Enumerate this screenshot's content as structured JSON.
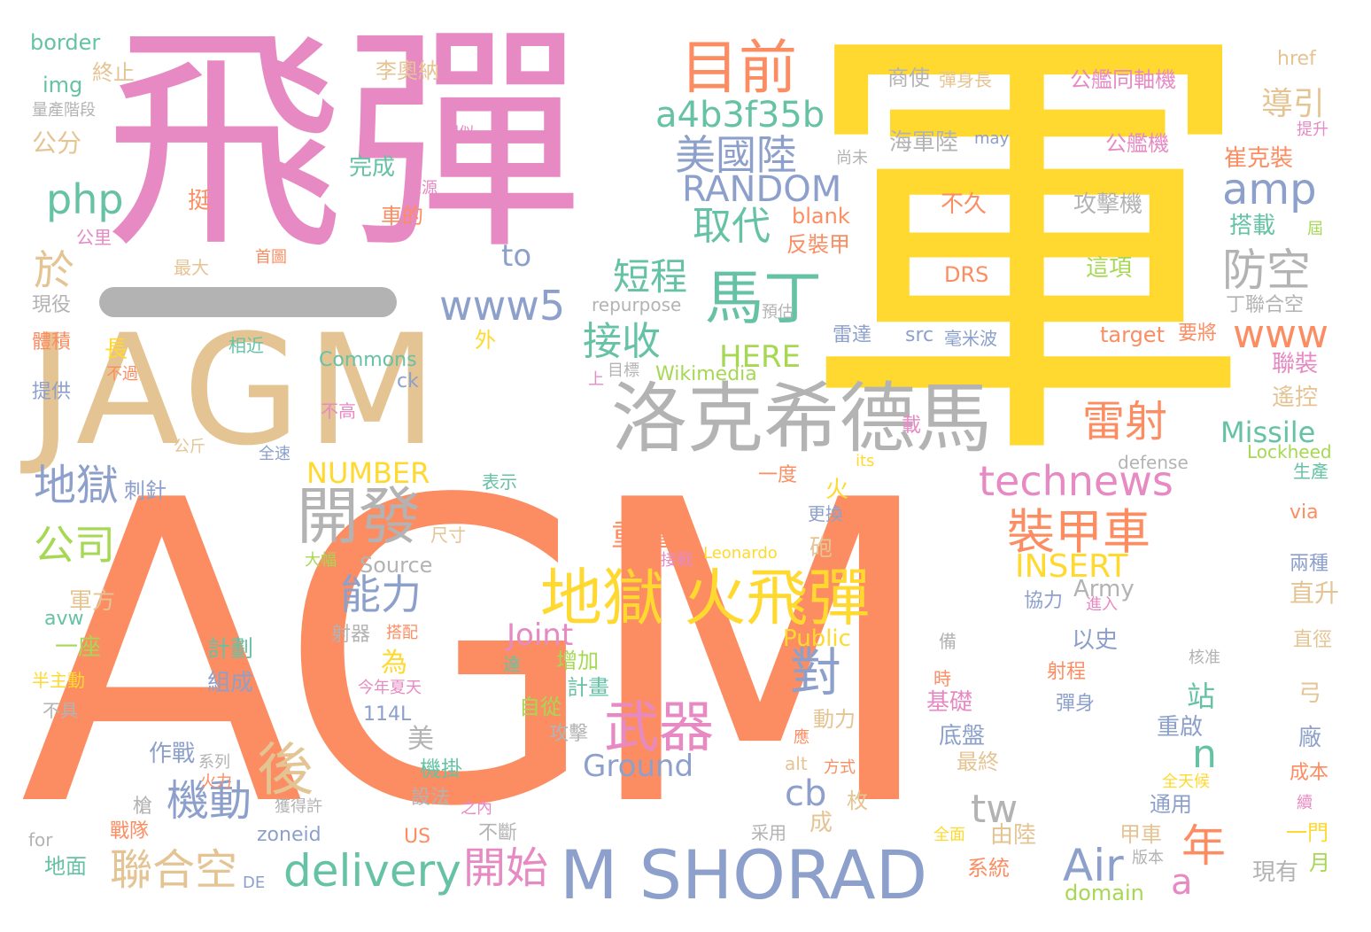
{
  "palette": {
    "orange": "#fc8d62",
    "pink": "#e78ac3",
    "yellow": "#ffd92f",
    "tan": "#e5c494",
    "gray": "#b3b3b3",
    "blue": "#8da0cb",
    "green": "#66c2a5",
    "lime": "#a6d854"
  },
  "words": [
    {
      "text": "AGM",
      "color": "orange"
    },
    {
      "text": "軍",
      "color": "yellow"
    },
    {
      "text": "飛彈",
      "color": "pink"
    },
    {
      "text": "JAGM",
      "color": "tan"
    },
    {
      "text": "M SHORAD",
      "color": "blue"
    },
    {
      "text": "洛克希德馬",
      "color": "gray"
    },
    {
      "text": "地獄 火飛彈",
      "color": "yellow"
    },
    {
      "text": "開發",
      "color": "gray"
    },
    {
      "text": "目前",
      "color": "orange"
    },
    {
      "text": "馬丁",
      "color": "green"
    },
    {
      "text": "武器",
      "color": "pink"
    },
    {
      "text": "裝甲車",
      "color": "orange"
    },
    {
      "text": "technews",
      "color": "pink"
    },
    {
      "text": "delivery",
      "color": "green"
    },
    {
      "text": "Air",
      "color": "blue"
    },
    {
      "text": "amp",
      "color": "blue"
    },
    {
      "text": "防空",
      "color": "gray"
    },
    {
      "text": "美國陸",
      "color": "blue"
    },
    {
      "text": "雷射",
      "color": "orange"
    },
    {
      "text": "接收",
      "color": "green"
    },
    {
      "text": "取代",
      "color": "green"
    },
    {
      "text": "短程",
      "color": "green"
    },
    {
      "text": "php",
      "color": "green"
    },
    {
      "text": "a4b3f35b",
      "color": "green"
    },
    {
      "text": "RANDOM",
      "color": "blue"
    },
    {
      "text": "www5",
      "color": "blue"
    },
    {
      "text": "www",
      "color": "orange"
    },
    {
      "text": "能力",
      "color": "blue"
    },
    {
      "text": "機動",
      "color": "blue"
    },
    {
      "text": "聯合空",
      "color": "tan"
    },
    {
      "text": "開始",
      "color": "pink"
    },
    {
      "text": "地獄",
      "color": "blue"
    },
    {
      "text": "公司",
      "color": "lime"
    },
    {
      "text": "後",
      "color": "tan"
    },
    {
      "text": "對",
      "color": "blue"
    },
    {
      "text": "年",
      "color": "orange"
    },
    {
      "text": "Missile",
      "color": "green"
    },
    {
      "text": "INSERT",
      "color": "yellow"
    },
    {
      "text": "NUMBER",
      "color": "yellow"
    },
    {
      "text": "Ground",
      "color": "blue"
    },
    {
      "text": "Joint",
      "color": "pink"
    },
    {
      "text": "HERE",
      "color": "lime"
    },
    {
      "text": "tw",
      "color": "gray"
    },
    {
      "text": "cb",
      "color": "blue"
    },
    {
      "text": "n",
      "color": "green"
    },
    {
      "text": "a",
      "color": "pink"
    },
    {
      "text": "於",
      "color": "tan"
    },
    {
      "text": "to",
      "color": "blue"
    },
    {
      "text": "重量",
      "color": "orange"
    },
    {
      "text": "導引",
      "color": "tan"
    },
    {
      "text": "Wikimedia",
      "color": "lime"
    },
    {
      "text": "Commons",
      "color": "green"
    },
    {
      "text": "Source",
      "color": "gray"
    },
    {
      "text": "Public",
      "color": "yellow"
    },
    {
      "text": "Army",
      "color": "gray"
    },
    {
      "text": "Leonardo",
      "color": "yellow"
    },
    {
      "text": "Lockheed",
      "color": "lime"
    },
    {
      "text": "defense",
      "color": "gray"
    },
    {
      "text": "target",
      "color": "orange"
    },
    {
      "text": "repurpose",
      "color": "gray"
    },
    {
      "text": "blank",
      "color": "orange"
    },
    {
      "text": "DRS",
      "color": "orange"
    },
    {
      "text": "src",
      "color": "blue"
    },
    {
      "text": "zoneid",
      "color": "blue"
    },
    {
      "text": "domain",
      "color": "lime"
    },
    {
      "text": "border",
      "color": "green"
    },
    {
      "text": "img",
      "color": "green"
    },
    {
      "text": "href",
      "color": "tan"
    },
    {
      "text": "may",
      "color": "blue"
    },
    {
      "text": "its",
      "color": "yellow"
    },
    {
      "text": "via",
      "color": "orange"
    },
    {
      "text": "alt",
      "color": "tan"
    },
    {
      "text": "US",
      "color": "orange"
    },
    {
      "text": "ck",
      "color": "blue"
    },
    {
      "text": "avw",
      "color": "green"
    },
    {
      "text": "114L",
      "color": "blue"
    },
    {
      "text": "for",
      "color": "gray"
    },
    {
      "text": "DE",
      "color": "blue"
    },
    {
      "text": "終止",
      "color": "tan"
    },
    {
      "text": "量產階段",
      "color": "gray"
    },
    {
      "text": "公分",
      "color": "tan"
    },
    {
      "text": "完成",
      "color": "green"
    },
    {
      "text": "挺",
      "color": "orange"
    },
    {
      "text": "公里",
      "color": "pink"
    },
    {
      "text": "最大",
      "color": "tan"
    },
    {
      "text": "現役",
      "color": "gray"
    },
    {
      "text": "體積",
      "color": "orange"
    },
    {
      "text": "提供",
      "color": "blue"
    },
    {
      "text": "相近",
      "color": "green"
    },
    {
      "text": "長",
      "color": "yellow"
    },
    {
      "text": "不過",
      "color": "orange"
    },
    {
      "text": "不高",
      "color": "pink"
    },
    {
      "text": "外",
      "color": "yellow"
    },
    {
      "text": "李奧納",
      "color": "tan"
    },
    {
      "text": "相似",
      "color": "pink"
    },
    {
      "text": "尚未",
      "color": "gray"
    },
    {
      "text": "來源",
      "color": "pink"
    },
    {
      "text": "車的",
      "color": "orange"
    },
    {
      "text": "首圖",
      "color": "orange"
    },
    {
      "text": "商使",
      "color": "gray"
    },
    {
      "text": "彈身長",
      "color": "tan"
    },
    {
      "text": "海軍陸",
      "color": "gray"
    },
    {
      "text": "公艦同軸機",
      "color": "pink"
    },
    {
      "text": "公艦機",
      "color": "pink"
    },
    {
      "text": "不久",
      "color": "orange"
    },
    {
      "text": "攻擊機",
      "color": "gray"
    },
    {
      "text": "這項",
      "color": "lime"
    },
    {
      "text": "反裝甲",
      "color": "orange"
    },
    {
      "text": "預估",
      "color": "gray"
    },
    {
      "text": "雷達",
      "color": "blue"
    },
    {
      "text": "毫米波",
      "color": "blue"
    },
    {
      "text": "要將",
      "color": "orange"
    },
    {
      "text": "崔克裝",
      "color": "orange"
    },
    {
      "text": "搭載",
      "color": "green"
    },
    {
      "text": "丁聯合空",
      "color": "gray"
    },
    {
      "text": "聯裝",
      "color": "pink"
    },
    {
      "text": "遙控",
      "color": "tan"
    },
    {
      "text": "提升",
      "color": "pink"
    },
    {
      "text": "屆",
      "color": "lime"
    },
    {
      "text": "目標",
      "color": "gray"
    },
    {
      "text": "上",
      "color": "pink"
    },
    {
      "text": "載",
      "color": "pink"
    },
    {
      "text": "一度",
      "color": "orange"
    },
    {
      "text": "火",
      "color": "yellow"
    },
    {
      "text": "砲",
      "color": "tan"
    },
    {
      "text": "更換",
      "color": "blue"
    },
    {
      "text": "接戰",
      "color": "pink"
    },
    {
      "text": "協力",
      "color": "blue"
    },
    {
      "text": "進入",
      "color": "pink"
    },
    {
      "text": "以史",
      "color": "blue"
    },
    {
      "text": "備",
      "color": "gray"
    },
    {
      "text": "為",
      "color": "yellow"
    },
    {
      "text": "美",
      "color": "gray"
    },
    {
      "text": "站",
      "color": "green"
    },
    {
      "text": "刺針",
      "color": "blue"
    },
    {
      "text": "表示",
      "color": "green"
    },
    {
      "text": "發",
      "color": "orange"
    },
    {
      "text": "尺寸",
      "color": "tan"
    },
    {
      "text": "大幅",
      "color": "lime"
    },
    {
      "text": "軍方",
      "color": "tan"
    },
    {
      "text": "一座",
      "color": "lime"
    },
    {
      "text": "半主動",
      "color": "yellow"
    },
    {
      "text": "不具",
      "color": "gray"
    },
    {
      "text": "計劃",
      "color": "green"
    },
    {
      "text": "組成",
      "color": "blue"
    },
    {
      "text": "射器",
      "color": "gray"
    },
    {
      "text": "搭配",
      "color": "orange"
    },
    {
      "text": "今年夏天",
      "color": "pink"
    },
    {
      "text": "達",
      "color": "green"
    },
    {
      "text": "增加",
      "color": "lime"
    },
    {
      "text": "計畫",
      "color": "green"
    },
    {
      "text": "自從",
      "color": "lime"
    },
    {
      "text": "攻擊",
      "color": "gray"
    },
    {
      "text": "機掛",
      "color": "green"
    },
    {
      "text": "設法",
      "color": "gray"
    },
    {
      "text": "之內",
      "color": "pink"
    },
    {
      "text": "不斷",
      "color": "gray"
    },
    {
      "text": "作戰",
      "color": "blue"
    },
    {
      "text": "系列",
      "color": "gray"
    },
    {
      "text": "火力",
      "color": "orange"
    },
    {
      "text": "獲得許",
      "color": "gray"
    },
    {
      "text": "槍",
      "color": "gray"
    },
    {
      "text": "戰隊",
      "color": "orange"
    },
    {
      "text": "地面",
      "color": "green"
    },
    {
      "text": "全速",
      "color": "blue"
    },
    {
      "text": "公斤",
      "color": "tan"
    },
    {
      "text": "動力",
      "color": "tan"
    },
    {
      "text": "方式",
      "color": "orange"
    },
    {
      "text": "枚",
      "color": "tan"
    },
    {
      "text": "成",
      "color": "tan"
    },
    {
      "text": "采用",
      "color": "gray"
    },
    {
      "text": "由陸",
      "color": "tan"
    },
    {
      "text": "系統",
      "color": "orange"
    },
    {
      "text": "全面",
      "color": "yellow"
    },
    {
      "text": "甲車",
      "color": "tan"
    },
    {
      "text": "版本",
      "color": "gray"
    },
    {
      "text": "通用",
      "color": "blue"
    },
    {
      "text": "最終",
      "color": "tan"
    },
    {
      "text": "底盤",
      "color": "blue"
    },
    {
      "text": "基礎",
      "color": "pink"
    },
    {
      "text": "時",
      "color": "orange"
    },
    {
      "text": "射程",
      "color": "orange"
    },
    {
      "text": "彈身",
      "color": "blue"
    },
    {
      "text": "重啟",
      "color": "blue"
    },
    {
      "text": "全天候",
      "color": "yellow"
    },
    {
      "text": "應",
      "color": "orange"
    },
    {
      "text": "核准",
      "color": "gray"
    },
    {
      "text": "弓",
      "color": "tan"
    },
    {
      "text": "廠",
      "color": "blue"
    },
    {
      "text": "成本",
      "color": "orange"
    },
    {
      "text": "續",
      "color": "pink"
    },
    {
      "text": "一門",
      "color": "yellow"
    },
    {
      "text": "月",
      "color": "lime"
    },
    {
      "text": "現有",
      "color": "gray"
    },
    {
      "text": "兩種",
      "color": "blue"
    },
    {
      "text": "直升",
      "color": "tan"
    },
    {
      "text": "直徑",
      "color": "tan"
    },
    {
      "text": "生產",
      "color": "green"
    }
  ]
}
